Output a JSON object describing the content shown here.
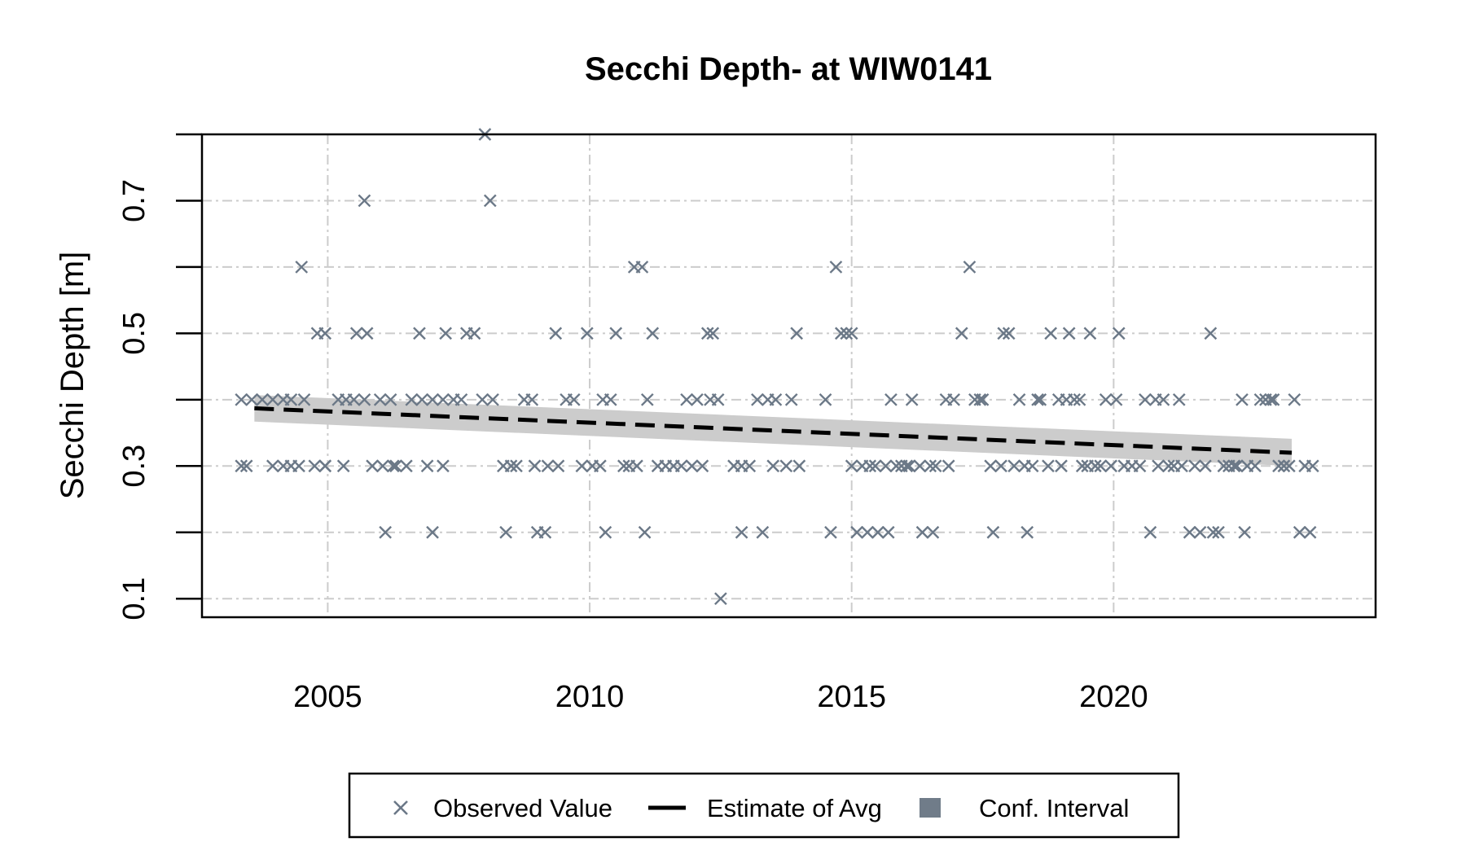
{
  "chart_data": {
    "type": "scatter",
    "title": "Secchi Depth- at WIW0141",
    "xlabel": "",
    "ylabel": "Secchi Depth [m]",
    "xlim": [
      2002.6,
      2025.0
    ],
    "ylim": [
      0.072,
      0.8
    ],
    "x_ticks": [
      2005,
      2010,
      2015,
      2020
    ],
    "x_tick_labels": [
      "2005",
      "2010",
      "2015",
      "2020"
    ],
    "y_ticks": [
      0.1,
      0.3,
      0.5,
      0.7
    ],
    "y_tick_labels": [
      "0.1",
      "0.3",
      "0.5",
      "0.7"
    ],
    "y_grid": [
      0.1,
      0.2,
      0.3,
      0.4,
      0.5,
      0.6,
      0.7,
      0.8
    ],
    "grid": true,
    "legend_position": "bottom",
    "colors": {
      "observed": "#6b7887",
      "estimate": "#000000",
      "conf_interval": "#cccccc",
      "legend_ci_swatch": "#707c89",
      "grid": "#cccccc"
    },
    "series": [
      {
        "name": "Observed Value",
        "marker": "x",
        "points": [
          [
            2003.35,
            0.3
          ],
          [
            2003.45,
            0.3
          ],
          [
            2003.35,
            0.4
          ],
          [
            2003.55,
            0.4
          ],
          [
            2003.75,
            0.4
          ],
          [
            2003.95,
            0.4
          ],
          [
            2003.95,
            0.3
          ],
          [
            2004.15,
            0.3
          ],
          [
            2004.3,
            0.3
          ],
          [
            2004.45,
            0.3
          ],
          [
            2004.15,
            0.4
          ],
          [
            2004.3,
            0.4
          ],
          [
            2004.55,
            0.4
          ],
          [
            2004.75,
            0.3
          ],
          [
            2004.95,
            0.3
          ],
          [
            2004.95,
            0.3
          ],
          [
            2005.3,
            0.3
          ],
          [
            2004.5,
            0.6
          ],
          [
            2004.8,
            0.5
          ],
          [
            2004.95,
            0.5
          ],
          [
            2005.2,
            0.4
          ],
          [
            2005.35,
            0.4
          ],
          [
            2005.5,
            0.4
          ],
          [
            2005.7,
            0.4
          ],
          [
            2005.55,
            0.5
          ],
          [
            2005.75,
            0.5
          ],
          [
            2005.7,
            0.7
          ],
          [
            2006.0,
            0.4
          ],
          [
            2006.2,
            0.4
          ],
          [
            2005.85,
            0.3
          ],
          [
            2006.05,
            0.3
          ],
          [
            2006.25,
            0.3
          ],
          [
            2006.1,
            0.2
          ],
          [
            2006.3,
            0.3
          ],
          [
            2006.5,
            0.3
          ],
          [
            2006.6,
            0.4
          ],
          [
            2006.8,
            0.4
          ],
          [
            2006.75,
            0.5
          ],
          [
            2006.9,
            0.3
          ],
          [
            2007.0,
            0.4
          ],
          [
            2007.0,
            0.2
          ],
          [
            2007.2,
            0.3
          ],
          [
            2007.2,
            0.4
          ],
          [
            2007.25,
            0.5
          ],
          [
            2007.4,
            0.4
          ],
          [
            2007.55,
            0.4
          ],
          [
            2007.65,
            0.5
          ],
          [
            2007.8,
            0.5
          ],
          [
            2007.95,
            0.4
          ],
          [
            2008.0,
            0.8
          ],
          [
            2008.1,
            0.7
          ],
          [
            2008.15,
            0.4
          ],
          [
            2008.35,
            0.3
          ],
          [
            2008.5,
            0.3
          ],
          [
            2008.6,
            0.3
          ],
          [
            2008.4,
            0.2
          ],
          [
            2008.75,
            0.4
          ],
          [
            2008.9,
            0.4
          ],
          [
            2008.95,
            0.3
          ],
          [
            2009.0,
            0.2
          ],
          [
            2009.15,
            0.2
          ],
          [
            2009.2,
            0.3
          ],
          [
            2009.4,
            0.3
          ],
          [
            2009.35,
            0.5
          ],
          [
            2009.55,
            0.4
          ],
          [
            2009.7,
            0.4
          ],
          [
            2009.85,
            0.3
          ],
          [
            2009.95,
            0.5
          ],
          [
            2010.05,
            0.3
          ],
          [
            2010.2,
            0.3
          ],
          [
            2010.25,
            0.4
          ],
          [
            2010.4,
            0.4
          ],
          [
            2010.3,
            0.2
          ],
          [
            2010.5,
            0.5
          ],
          [
            2010.65,
            0.3
          ],
          [
            2010.75,
            0.3
          ],
          [
            2010.9,
            0.3
          ],
          [
            2010.85,
            0.6
          ],
          [
            2011.0,
            0.6
          ],
          [
            2011.05,
            0.2
          ],
          [
            2011.1,
            0.4
          ],
          [
            2011.2,
            0.5
          ],
          [
            2011.3,
            0.3
          ],
          [
            2011.45,
            0.3
          ],
          [
            2011.6,
            0.3
          ],
          [
            2011.75,
            0.3
          ],
          [
            2011.85,
            0.4
          ],
          [
            2011.95,
            0.3
          ],
          [
            2012.05,
            0.4
          ],
          [
            2012.15,
            0.3
          ],
          [
            2012.25,
            0.5
          ],
          [
            2012.35,
            0.5
          ],
          [
            2012.3,
            0.4
          ],
          [
            2012.45,
            0.4
          ],
          [
            2012.75,
            0.3
          ],
          [
            2012.9,
            0.2
          ],
          [
            2012.9,
            0.3
          ],
          [
            2013.05,
            0.3
          ],
          [
            2012.5,
            0.1
          ],
          [
            2013.2,
            0.4
          ],
          [
            2013.3,
            0.2
          ],
          [
            2013.4,
            0.4
          ],
          [
            2013.5,
            0.3
          ],
          [
            2013.55,
            0.4
          ],
          [
            2013.75,
            0.3
          ],
          [
            2013.85,
            0.4
          ],
          [
            2013.95,
            0.5
          ],
          [
            2014.0,
            0.3
          ],
          [
            2014.5,
            0.4
          ],
          [
            2014.6,
            0.2
          ],
          [
            2014.7,
            0.6
          ],
          [
            2014.8,
            0.5
          ],
          [
            2014.9,
            0.5
          ],
          [
            2015.0,
            0.5
          ],
          [
            2015.0,
            0.3
          ],
          [
            2015.1,
            0.2
          ],
          [
            2015.2,
            0.3
          ],
          [
            2015.3,
            0.2
          ],
          [
            2015.35,
            0.3
          ],
          [
            2015.45,
            0.3
          ],
          [
            2015.5,
            0.2
          ],
          [
            2015.65,
            0.3
          ],
          [
            2015.7,
            0.2
          ],
          [
            2015.75,
            0.4
          ],
          [
            2015.85,
            0.3
          ],
          [
            2015.95,
            0.3
          ],
          [
            2016.05,
            0.3
          ],
          [
            2016.1,
            0.3
          ],
          [
            2016.15,
            0.4
          ],
          [
            2016.3,
            0.3
          ],
          [
            2016.35,
            0.2
          ],
          [
            2016.5,
            0.3
          ],
          [
            2016.55,
            0.2
          ],
          [
            2016.6,
            0.3
          ],
          [
            2016.8,
            0.4
          ],
          [
            2016.85,
            0.3
          ],
          [
            2016.95,
            0.4
          ],
          [
            2017.1,
            0.5
          ],
          [
            2017.25,
            0.6
          ],
          [
            2017.35,
            0.4
          ],
          [
            2017.45,
            0.4
          ],
          [
            2017.5,
            0.4
          ],
          [
            2017.65,
            0.3
          ],
          [
            2017.7,
            0.2
          ],
          [
            2017.85,
            0.3
          ],
          [
            2017.9,
            0.5
          ],
          [
            2018.0,
            0.5
          ],
          [
            2018.1,
            0.3
          ],
          [
            2018.2,
            0.4
          ],
          [
            2018.3,
            0.3
          ],
          [
            2018.35,
            0.2
          ],
          [
            2018.45,
            0.3
          ],
          [
            2018.55,
            0.4
          ],
          [
            2018.6,
            0.4
          ],
          [
            2018.75,
            0.3
          ],
          [
            2018.8,
            0.5
          ],
          [
            2018.95,
            0.4
          ],
          [
            2019.0,
            0.3
          ],
          [
            2019.1,
            0.4
          ],
          [
            2019.15,
            0.5
          ],
          [
            2019.25,
            0.4
          ],
          [
            2019.35,
            0.4
          ],
          [
            2019.4,
            0.3
          ],
          [
            2019.5,
            0.3
          ],
          [
            2019.55,
            0.5
          ],
          [
            2019.65,
            0.3
          ],
          [
            2019.75,
            0.3
          ],
          [
            2019.85,
            0.4
          ],
          [
            2019.95,
            0.3
          ],
          [
            2020.05,
            0.4
          ],
          [
            2020.1,
            0.5
          ],
          [
            2020.2,
            0.3
          ],
          [
            2020.35,
            0.3
          ],
          [
            2020.5,
            0.3
          ],
          [
            2020.6,
            0.4
          ],
          [
            2020.7,
            0.2
          ],
          [
            2020.8,
            0.4
          ],
          [
            2020.85,
            0.3
          ],
          [
            2020.95,
            0.4
          ],
          [
            2021.05,
            0.3
          ],
          [
            2021.15,
            0.3
          ],
          [
            2021.25,
            0.4
          ],
          [
            2021.3,
            0.3
          ],
          [
            2021.45,
            0.2
          ],
          [
            2021.55,
            0.3
          ],
          [
            2021.65,
            0.2
          ],
          [
            2021.75,
            0.3
          ],
          [
            2021.85,
            0.5
          ],
          [
            2021.9,
            0.2
          ],
          [
            2022.0,
            0.2
          ],
          [
            2022.1,
            0.3
          ],
          [
            2022.2,
            0.3
          ],
          [
            2022.3,
            0.3
          ],
          [
            2022.35,
            0.3
          ],
          [
            2022.45,
            0.4
          ],
          [
            2022.5,
            0.2
          ],
          [
            2022.55,
            0.3
          ],
          [
            2022.7,
            0.3
          ],
          [
            2022.8,
            0.4
          ],
          [
            2022.9,
            0.4
          ],
          [
            2023.0,
            0.4
          ],
          [
            2023.05,
            0.4
          ],
          [
            2023.15,
            0.3
          ],
          [
            2023.25,
            0.3
          ],
          [
            2023.35,
            0.3
          ],
          [
            2023.45,
            0.4
          ],
          [
            2023.55,
            0.2
          ],
          [
            2023.65,
            0.3
          ],
          [
            2023.75,
            0.2
          ],
          [
            2023.8,
            0.3
          ]
        ]
      },
      {
        "name": "Estimate of Avg",
        "line": "dashed",
        "x": [
          2003.6,
          2023.4
        ],
        "y": [
          0.387,
          0.32
        ]
      },
      {
        "name": "Conf. Interval",
        "band": true,
        "x": [
          2003.6,
          2023.4
        ],
        "upper": [
          0.407,
          0.341
        ],
        "lower": [
          0.367,
          0.3
        ]
      }
    ],
    "legend": [
      "Observed Value",
      "Estimate of Avg",
      "Conf. Interval"
    ]
  }
}
